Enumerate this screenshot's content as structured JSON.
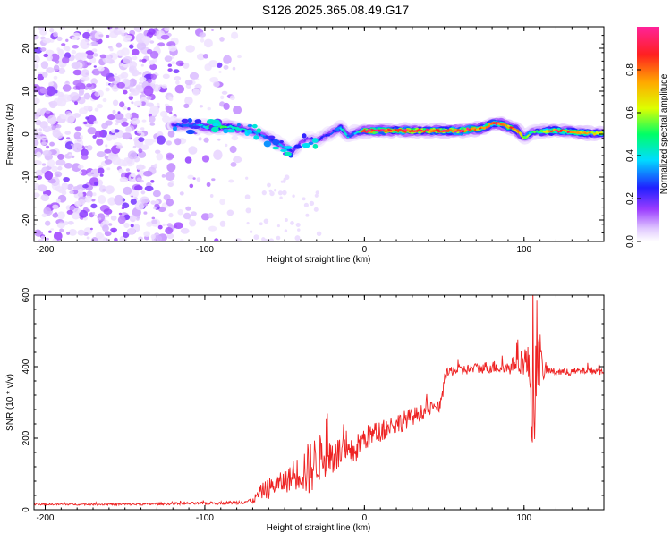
{
  "title": "S126.2025.365.08.49.G17",
  "chart_data": [
    {
      "type": "heatmap",
      "xlabel": "Height of straight line (km)",
      "ylabel": "Frequency (Hz)",
      "xlim": [
        -207,
        150
      ],
      "ylim": [
        -25,
        25
      ],
      "xticks": [
        -200,
        -100,
        0,
        100
      ],
      "yticks": [
        -20,
        -10,
        0,
        10,
        20
      ],
      "colorbar": {
        "label": "Normalized spectral amplitude",
        "range": [
          0.0,
          1.0
        ],
        "ticks": [
          "0.0",
          "0.2",
          "0.4",
          "0.6",
          "0.8"
        ],
        "colors": [
          "#ffffff",
          "#d8b8ff",
          "#9b3dff",
          "#2020ff",
          "#00ddff",
          "#00ff66",
          "#ddff00",
          "#ffaa00",
          "#ff2020",
          "#ff2299"
        ]
      },
      "ridge": {
        "description": "main spectral ridge frequency (Hz) vs height (km)",
        "x": [
          -120,
          -105,
          -95,
          -85,
          -75,
          -65,
          -55,
          -45,
          -40,
          -35,
          -30,
          -20,
          -15,
          -10,
          -5,
          0,
          20,
          40,
          60,
          75,
          80,
          85,
          95,
          100,
          105,
          120,
          140,
          150
        ],
        "y": [
          2,
          2,
          1.5,
          1.8,
          1,
          0,
          -2,
          -4,
          -2,
          -1,
          -1.5,
          0.5,
          1.5,
          -0.5,
          0.5,
          0.8,
          0.8,
          0.8,
          0.8,
          1.5,
          2.5,
          2.5,
          1,
          -1,
          0.5,
          0.8,
          0.2,
          0.2
        ],
        "amplitude": [
          0.35,
          0.4,
          0.55,
          0.5,
          0.45,
          0.35,
          0.4,
          0.3,
          0.2,
          0.25,
          0.3,
          0.35,
          0.5,
          0.4,
          0.45,
          0.9,
          0.92,
          0.9,
          0.92,
          0.85,
          0.8,
          0.88,
          0.75,
          0.6,
          0.5,
          0.9,
          0.75,
          0.7
        ]
      }
    },
    {
      "type": "line",
      "xlabel": "Height of straight line (km)",
      "ylabel": "SNR (10 * v/v)",
      "xlim": [
        -207,
        150
      ],
      "ylim": [
        0,
        600
      ],
      "xticks": [
        -200,
        -100,
        0,
        100
      ],
      "yticks": [
        0,
        200,
        400,
        600
      ],
      "color": "#ee2222",
      "x": [
        -207,
        -150,
        -100,
        -80,
        -70,
        -65,
        -60,
        -55,
        -50,
        -45,
        -40,
        -35,
        -30,
        -25,
        -20,
        -15,
        -10,
        -5,
        0,
        10,
        20,
        30,
        40,
        48,
        50,
        52,
        55,
        60,
        70,
        80,
        90,
        95,
        100,
        103,
        105,
        107,
        108,
        110,
        112,
        115,
        120,
        130,
        140,
        150
      ],
      "y": [
        15,
        15,
        18,
        20,
        25,
        50,
        60,
        70,
        80,
        90,
        110,
        110,
        140,
        150,
        150,
        160,
        150,
        170,
        200,
        220,
        240,
        260,
        280,
        290,
        360,
        380,
        390,
        390,
        395,
        400,
        395,
        410,
        420,
        400,
        300,
        350,
        480,
        420,
        380,
        390,
        385,
        385,
        390,
        385
      ],
      "noise": [
        2,
        3,
        4,
        5,
        8,
        20,
        30,
        25,
        35,
        35,
        55,
        80,
        70,
        60,
        60,
        45,
        40,
        40,
        35,
        30,
        30,
        25,
        20,
        15,
        20,
        15,
        15,
        15,
        15,
        18,
        20,
        25,
        45,
        60,
        160,
        180,
        130,
        80,
        20,
        10,
        10,
        10,
        10,
        10
      ]
    }
  ]
}
